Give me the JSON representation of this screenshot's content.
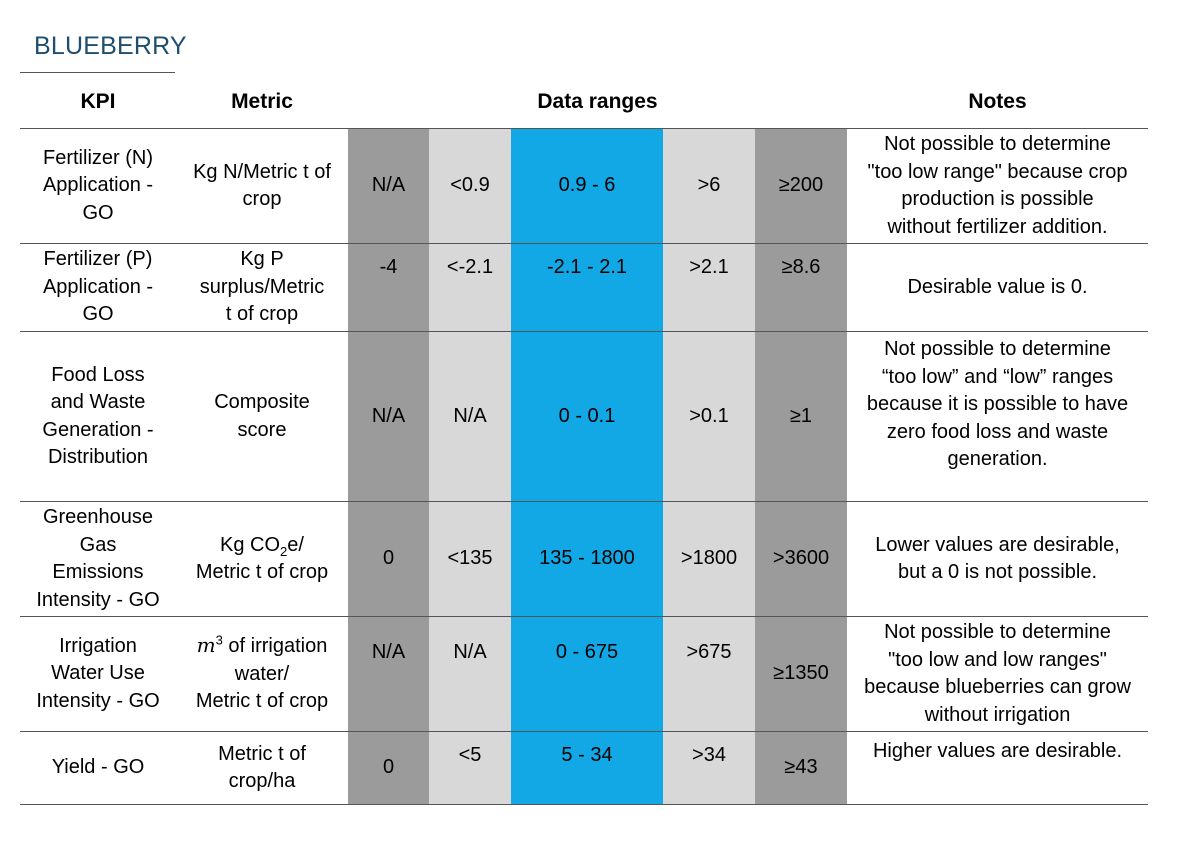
{
  "title": "BLUEBERRY",
  "headers": {
    "kpi": "KPI",
    "metric": "Metric",
    "ranges": "Data ranges",
    "notes": "Notes"
  },
  "colors": {
    "dark_gray": "#9b9b9b",
    "light_gray": "#d8d8d8",
    "blue": "#12a8e6",
    "title": "#1f4e6e"
  },
  "rows": [
    {
      "kpi_lines": [
        "Fertilizer (N)",
        "Application -",
        "GO"
      ],
      "metric_lines": [
        "Kg N/Metric t of",
        "crop"
      ],
      "ranges": [
        "N/A",
        "<0.9",
        "0.9 - 6",
        ">6",
        "≥200"
      ],
      "note_lines": [
        "Not possible to determine",
        "\"too low range\" because crop",
        "production is possible",
        "without fertilizer addition."
      ]
    },
    {
      "kpi_lines": [
        "Fertilizer (P)",
        "Application -",
        "GO"
      ],
      "metric_lines": [
        "Kg P",
        "surplus/Metric",
        "t of crop"
      ],
      "ranges": [
        "-4",
        "<-2.1",
        "-2.1 - 2.1",
        ">2.1",
        "≥8.6"
      ],
      "note_lines": [
        "Desirable value is 0."
      ]
    },
    {
      "kpi_lines": [
        "Food Loss",
        "and Waste",
        "Generation -",
        "Distribution"
      ],
      "metric_lines": [
        "Composite",
        "score"
      ],
      "ranges": [
        "N/A",
        "N/A",
        "0 - 0.1",
        ">0.1",
        "≥1"
      ],
      "note_lines": [
        "Not possible to determine",
        "“too low” and “low” ranges",
        "because it is possible to have",
        "zero food loss and waste",
        "generation."
      ]
    },
    {
      "kpi_lines": [
        "Greenhouse",
        "Gas",
        "Emissions",
        "Intensity - GO"
      ],
      "metric_a": "Kg CO",
      "metric_sub": "2",
      "metric_b": "e/",
      "metric_line2": "Metric t of crop",
      "ranges": [
        "0",
        "<135",
        "135 - 1800",
        ">1800",
        ">3600"
      ],
      "note_lines": [
        "Lower values are desirable,",
        "but a 0 is not possible."
      ]
    },
    {
      "kpi_lines": [
        "Irrigation",
        "Water Use",
        "Intensity - GO"
      ],
      "metric_m": "m",
      "metric_sup": "3",
      "metric_a": " of irrigation",
      "metric_line2": "water/",
      "metric_line3": "Metric t of crop",
      "ranges": [
        "N/A",
        "N/A",
        "0 - 675",
        ">675",
        "≥1350"
      ],
      "note_lines": [
        "Not possible to determine",
        "\"too low and low ranges\"",
        "because blueberries can grow",
        "without irrigation"
      ]
    },
    {
      "kpi_lines": [
        "Yield - GO"
      ],
      "metric_lines": [
        "Metric t of",
        "crop/ha"
      ],
      "ranges": [
        "0",
        "<5",
        "5 - 34",
        ">34",
        "≥43"
      ],
      "note_lines": [
        "Higher values are desirable."
      ]
    }
  ]
}
